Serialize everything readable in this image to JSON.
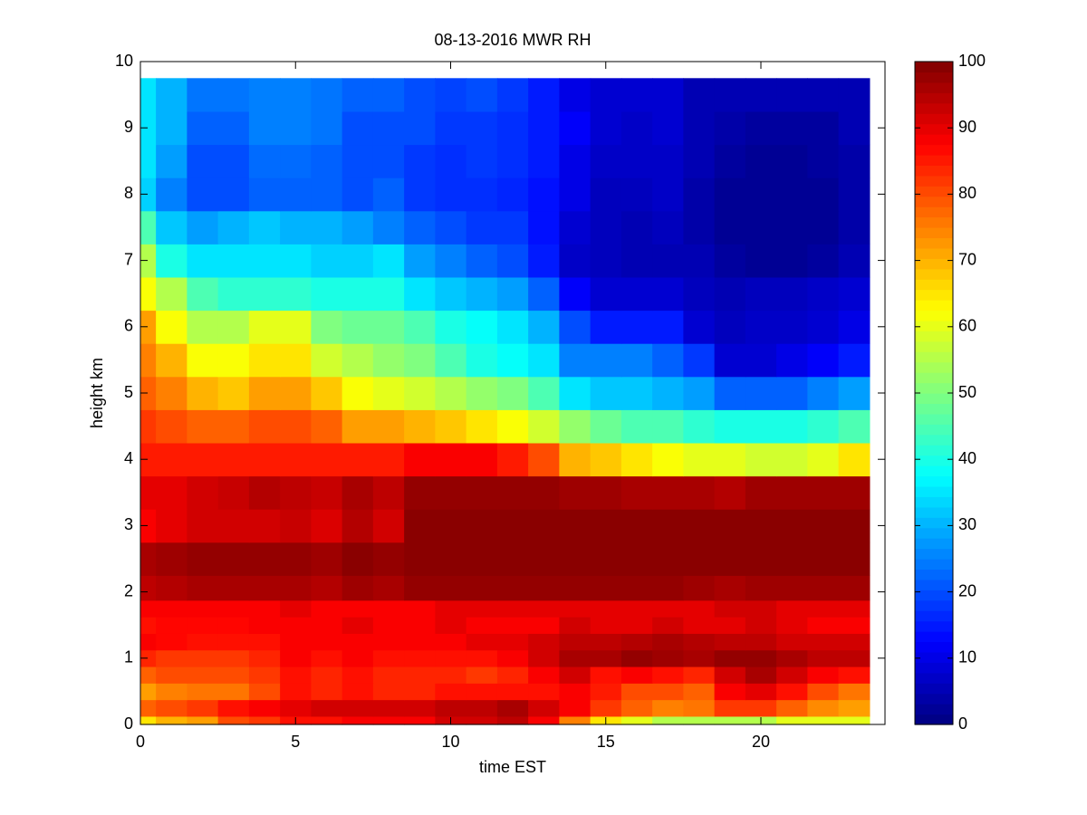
{
  "chart_data": {
    "type": "heatmap",
    "title": "08-13-2016 MWR RH",
    "xlabel": "time EST",
    "ylabel": "height km",
    "colormap": "jet",
    "x": [
      0,
      1,
      2,
      3,
      4,
      5,
      6,
      7,
      8,
      9,
      10,
      11,
      12,
      13,
      14,
      15,
      16,
      17,
      18,
      19,
      20,
      21,
      22,
      23
    ],
    "y": [
      0,
      0.25,
      0.5,
      0.75,
      1,
      1.25,
      1.5,
      1.75,
      2,
      2.5,
      3,
      3.5,
      4,
      4.5,
      5,
      5.5,
      6,
      6.5,
      7,
      7.5,
      8,
      8.5,
      9,
      9.5
    ],
    "z": [
      [
        65,
        70,
        72,
        80,
        82,
        86,
        86,
        88,
        88,
        88,
        92,
        92,
        94,
        88,
        75,
        65,
        60,
        55,
        55,
        55,
        55,
        60,
        60,
        60
      ],
      [
        78,
        80,
        82,
        86,
        88,
        90,
        92,
        92,
        92,
        92,
        94,
        94,
        96,
        92,
        88,
        82,
        78,
        75,
        76,
        82,
        82,
        78,
        74,
        72
      ],
      [
        72,
        75,
        76,
        76,
        80,
        86,
        84,
        86,
        84,
        84,
        86,
        86,
        86,
        86,
        88,
        85,
        80,
        80,
        78,
        88,
        90,
        86,
        80,
        76
      ],
      [
        78,
        80,
        80,
        80,
        82,
        86,
        84,
        86,
        84,
        84,
        84,
        82,
        84,
        88,
        92,
        86,
        88,
        86,
        84,
        92,
        96,
        92,
        88,
        86
      ],
      [
        84,
        82,
        82,
        82,
        84,
        88,
        86,
        88,
        86,
        86,
        86,
        86,
        88,
        92,
        96,
        96,
        98,
        97,
        96,
        98,
        98,
        96,
        94,
        94
      ],
      [
        88,
        87,
        86,
        86,
        86,
        88,
        88,
        88,
        88,
        88,
        88,
        90,
        90,
        92,
        94,
        94,
        95,
        96,
        95,
        94,
        94,
        92,
        92,
        92
      ],
      [
        86,
        87,
        87,
        87,
        88,
        88,
        88,
        90,
        88,
        88,
        90,
        88,
        88,
        88,
        92,
        90,
        90,
        92,
        90,
        90,
        92,
        90,
        88,
        88
      ],
      [
        88,
        88,
        88,
        88,
        88,
        90,
        88,
        88,
        88,
        88,
        90,
        90,
        90,
        90,
        90,
        90,
        90,
        90,
        90,
        92,
        92,
        90,
        90,
        90
      ],
      [
        94,
        95,
        96,
        96,
        96,
        96,
        95,
        97,
        96,
        98,
        98,
        98,
        98,
        98,
        98,
        98,
        98,
        98,
        97,
        96,
        97,
        97,
        97,
        97
      ],
      [
        96,
        97,
        98,
        98,
        98,
        98,
        97,
        99,
        98,
        99,
        99,
        99,
        99,
        99,
        99,
        99,
        99,
        99,
        99,
        99,
        99,
        99,
        99,
        99
      ],
      [
        88,
        90,
        92,
        92,
        92,
        93,
        91,
        95,
        92,
        99,
        99,
        99,
        99,
        99,
        99,
        99,
        99,
        99,
        99,
        99,
        99,
        99,
        99,
        99
      ],
      [
        90,
        90,
        92,
        93,
        95,
        94,
        93,
        96,
        94,
        98,
        98,
        98,
        98,
        98,
        97,
        97,
        96,
        96,
        96,
        95,
        97,
        97,
        97,
        97
      ],
      [
        85,
        85,
        85,
        85,
        85,
        85,
        85,
        85,
        85,
        88,
        88,
        88,
        85,
        80,
        70,
        68,
        65,
        62,
        60,
        60,
        58,
        58,
        60,
        65
      ],
      [
        82,
        80,
        78,
        78,
        80,
        80,
        78,
        72,
        72,
        70,
        68,
        65,
        62,
        58,
        52,
        48,
        45,
        45,
        42,
        40,
        40,
        40,
        42,
        45
      ],
      [
        78,
        75,
        70,
        68,
        72,
        72,
        68,
        62,
        60,
        58,
        55,
        52,
        50,
        45,
        35,
        32,
        32,
        30,
        28,
        22,
        22,
        22,
        25,
        28
      ],
      [
        75,
        70,
        62,
        62,
        65,
        65,
        58,
        55,
        52,
        50,
        45,
        40,
        38,
        35,
        25,
        25,
        25,
        22,
        18,
        8,
        8,
        10,
        12,
        15
      ],
      [
        72,
        62,
        55,
        55,
        60,
        60,
        50,
        48,
        48,
        45,
        40,
        38,
        35,
        30,
        20,
        15,
        15,
        15,
        8,
        6,
        7,
        7,
        8,
        10
      ],
      [
        62,
        55,
        45,
        42,
        42,
        42,
        40,
        40,
        40,
        35,
        32,
        30,
        28,
        22,
        12,
        8,
        8,
        8,
        6,
        5,
        6,
        6,
        7,
        8
      ],
      [
        55,
        40,
        35,
        35,
        35,
        35,
        33,
        33,
        35,
        28,
        25,
        22,
        20,
        15,
        7,
        6,
        5,
        5,
        5,
        3,
        2,
        2,
        3,
        5
      ],
      [
        45,
        32,
        28,
        30,
        32,
        30,
        30,
        28,
        25,
        22,
        20,
        18,
        18,
        14,
        8,
        6,
        5,
        6,
        4,
        2,
        2,
        2,
        2,
        4
      ],
      [
        33,
        25,
        20,
        20,
        22,
        22,
        22,
        20,
        22,
        18,
        17,
        17,
        16,
        14,
        10,
        6,
        6,
        7,
        4,
        2,
        2,
        2,
        2,
        4
      ],
      [
        35,
        28,
        20,
        20,
        23,
        23,
        22,
        20,
        20,
        18,
        17,
        18,
        17,
        15,
        10,
        7,
        7,
        7,
        5,
        3,
        2,
        2,
        3,
        4
      ],
      [
        35,
        30,
        22,
        22,
        25,
        25,
        24,
        20,
        20,
        20,
        18,
        18,
        17,
        15,
        12,
        8,
        7,
        8,
        5,
        4,
        3,
        3,
        3,
        5
      ],
      [
        35,
        30,
        24,
        24,
        25,
        25,
        24,
        22,
        22,
        20,
        19,
        20,
        18,
        15,
        10,
        8,
        8,
        8,
        5,
        5,
        5,
        5,
        5,
        5
      ]
    ],
    "xlim": [
      0,
      24
    ],
    "xticks": [
      0,
      5,
      10,
      15,
      20
    ],
    "ylim": [
      0,
      10
    ],
    "yticks": [
      0,
      1,
      2,
      3,
      4,
      5,
      6,
      7,
      8,
      9,
      10
    ],
    "clim": [
      0,
      100
    ],
    "cticks": [
      0,
      10,
      20,
      30,
      40,
      50,
      60,
      70,
      80,
      90,
      100
    ]
  }
}
